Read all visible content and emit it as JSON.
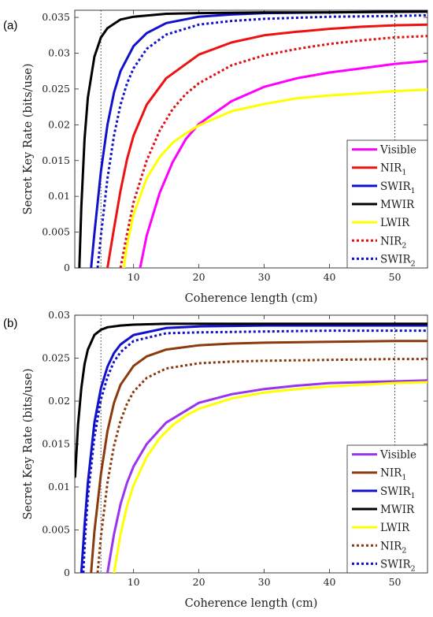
{
  "chart_data": [
    {
      "type": "line",
      "panel_label": "(a)",
      "xlabel": "Coherence length (cm)",
      "ylabel": "Secret Key Rate (bits/use)",
      "xlim": [
        1,
        55
      ],
      "ylim": [
        0,
        0.036
      ],
      "xticks": [
        10,
        20,
        30,
        40,
        50
      ],
      "xtick_labels": [
        "10",
        "20",
        "30",
        "40",
        "50"
      ],
      "yticks": [
        0,
        0.005,
        0.01,
        0.015,
        0.02,
        0.025,
        0.03,
        0.035
      ],
      "ytick_labels": [
        "0",
        "0.005",
        "0.01",
        "0.015",
        "0.02",
        "0.025",
        "0.03",
        "0.035"
      ],
      "reference_lines_x": [
        5,
        50
      ],
      "legend_position": "lower-right",
      "series": [
        {
          "name": "Visible",
          "sub": "",
          "color": "#ff00ff",
          "style": "solid",
          "x": [
            11,
            12,
            14,
            16,
            18,
            20,
            25,
            30,
            35,
            40,
            45,
            50,
            55
          ],
          "y": [
            0,
            0.0045,
            0.0105,
            0.0148,
            0.018,
            0.0201,
            0.0233,
            0.0253,
            0.0265,
            0.0273,
            0.0279,
            0.0285,
            0.0289
          ]
        },
        {
          "name": "NIR",
          "sub": "1",
          "color": "#ee1111",
          "style": "solid",
          "x": [
            6,
            7,
            8,
            9,
            10,
            12,
            15,
            20,
            25,
            30,
            35,
            40,
            45,
            50,
            55
          ],
          "y": [
            0,
            0.0055,
            0.0108,
            0.0152,
            0.0185,
            0.0228,
            0.0265,
            0.0298,
            0.0315,
            0.0325,
            0.033,
            0.0334,
            0.0337,
            0.0339,
            0.034
          ]
        },
        {
          "name": "SWIR",
          "sub": "1",
          "color": "#1111cc",
          "style": "solid",
          "x": [
            3.5,
            4,
            5,
            6,
            7,
            8,
            10,
            12,
            15,
            20,
            25,
            30,
            40,
            50,
            55
          ],
          "y": [
            0,
            0.0048,
            0.0135,
            0.02,
            0.0245,
            0.0275,
            0.031,
            0.0328,
            0.0342,
            0.0351,
            0.0354,
            0.0356,
            0.0357,
            0.0358,
            0.0358
          ]
        },
        {
          "name": "MWIR",
          "sub": "",
          "color": "#000000",
          "style": "solid",
          "x": [
            1.7,
            2,
            2.5,
            3,
            4,
            5,
            6,
            8,
            10,
            15,
            20,
            30,
            40,
            55
          ],
          "y": [
            0,
            0.0085,
            0.018,
            0.0238,
            0.0295,
            0.0322,
            0.0335,
            0.0347,
            0.0351,
            0.0355,
            0.0356,
            0.0357,
            0.0357,
            0.0358
          ]
        },
        {
          "name": "LWIR",
          "sub": "",
          "color": "#ffff00",
          "style": "solid",
          "x": [
            8.5,
            9,
            10,
            12,
            14,
            16,
            18,
            20,
            25,
            30,
            35,
            40,
            45,
            50,
            55
          ],
          "y": [
            0,
            0.0032,
            0.0075,
            0.0125,
            0.0155,
            0.0175,
            0.0188,
            0.0199,
            0.0219,
            0.0229,
            0.0237,
            0.0241,
            0.0244,
            0.0247,
            0.0249
          ]
        },
        {
          "name": "NIR",
          "sub": "2",
          "color": "#dd1111",
          "style": "dotted",
          "x": [
            8,
            9,
            10,
            12,
            14,
            16,
            18,
            20,
            25,
            30,
            35,
            40,
            45,
            50,
            55
          ],
          "y": [
            0,
            0.0048,
            0.0092,
            0.015,
            0.0192,
            0.0222,
            0.0243,
            0.0258,
            0.0283,
            0.0297,
            0.0306,
            0.0313,
            0.0318,
            0.0322,
            0.0324
          ]
        },
        {
          "name": "SWIR",
          "sub": "2",
          "color": "#1111cc",
          "style": "dotted",
          "x": [
            4.5,
            5,
            6,
            7,
            8,
            9,
            10,
            12,
            15,
            20,
            25,
            30,
            40,
            50,
            55
          ],
          "y": [
            0,
            0.0045,
            0.0125,
            0.0185,
            0.0228,
            0.0258,
            0.0279,
            0.0306,
            0.0326,
            0.034,
            0.0345,
            0.0348,
            0.0351,
            0.0352,
            0.0353
          ]
        }
      ]
    },
    {
      "type": "line",
      "panel_label": "(b)",
      "xlabel": "Coherence length (cm)",
      "ylabel": "Secret Key Rate (bits/use)",
      "xlim": [
        1,
        55
      ],
      "ylim": [
        0,
        0.03
      ],
      "xticks": [
        10,
        20,
        30,
        40,
        50
      ],
      "xtick_labels": [
        "10",
        "20",
        "30",
        "40",
        "50"
      ],
      "yticks": [
        0,
        0.005,
        0.01,
        0.015,
        0.02,
        0.025,
        0.03
      ],
      "ytick_labels": [
        "0",
        "0.005",
        "0.01",
        "0.015",
        "0.02",
        "0.025",
        "0.03"
      ],
      "reference_lines_x": [
        5,
        50
      ],
      "legend_position": "lower-right",
      "series": [
        {
          "name": "Visible",
          "sub": "",
          "color": "#9933ee",
          "style": "solid",
          "x": [
            6,
            7,
            8,
            9,
            10,
            12,
            15,
            20,
            25,
            30,
            35,
            40,
            45,
            50,
            55
          ],
          "y": [
            0,
            0.0045,
            0.008,
            0.0105,
            0.0124,
            0.015,
            0.0175,
            0.0198,
            0.0208,
            0.0214,
            0.0218,
            0.0221,
            0.0222,
            0.0223,
            0.0224
          ]
        },
        {
          "name": "NIR",
          "sub": "1",
          "color": "#8b3a0e",
          "style": "solid",
          "x": [
            3.5,
            4,
            5,
            6,
            7,
            8,
            10,
            12,
            15,
            20,
            25,
            30,
            40,
            50,
            55
          ],
          "y": [
            0,
            0.0048,
            0.0115,
            0.0165,
            0.0198,
            0.0219,
            0.0241,
            0.0252,
            0.026,
            0.0265,
            0.0267,
            0.0268,
            0.0269,
            0.027,
            0.027
          ]
        },
        {
          "name": "SWIR",
          "sub": "1",
          "color": "#1111cc",
          "style": "solid",
          "x": [
            2,
            2.5,
            3,
            4,
            5,
            6,
            7,
            8,
            10,
            15,
            20,
            30,
            40,
            55
          ],
          "y": [
            0,
            0.0055,
            0.0105,
            0.0175,
            0.0215,
            0.024,
            0.0256,
            0.0266,
            0.0277,
            0.0285,
            0.0287,
            0.0288,
            0.0288,
            0.0288
          ]
        },
        {
          "name": "MWIR",
          "sub": "",
          "color": "#000000",
          "style": "solid",
          "x": [
            1.05,
            1.5,
            2,
            2.5,
            3,
            4,
            5,
            6,
            8,
            10,
            15,
            20,
            30,
            55
          ],
          "y": [
            0.0112,
            0.0172,
            0.0215,
            0.0243,
            0.026,
            0.0277,
            0.0283,
            0.0286,
            0.0288,
            0.0289,
            0.029,
            0.029,
            0.029,
            0.029
          ]
        },
        {
          "name": "LWIR",
          "sub": "",
          "color": "#ffff00",
          "style": "solid",
          "x": [
            7,
            8,
            9,
            10,
            12,
            14,
            16,
            18,
            20,
            25,
            30,
            35,
            40,
            45,
            50,
            55
          ],
          "y": [
            0,
            0.0045,
            0.0078,
            0.0102,
            0.0135,
            0.0157,
            0.0172,
            0.0183,
            0.0191,
            0.0203,
            0.021,
            0.0214,
            0.0217,
            0.0219,
            0.0221,
            0.0222
          ]
        },
        {
          "name": "NIR",
          "sub": "2",
          "color": "#8b3a0e",
          "style": "dotted",
          "x": [
            4.5,
            5,
            6,
            7,
            8,
            9,
            10,
            12,
            15,
            20,
            25,
            30,
            40,
            50,
            55
          ],
          "y": [
            0,
            0.0042,
            0.0105,
            0.0148,
            0.0177,
            0.0197,
            0.0211,
            0.0227,
            0.0238,
            0.0244,
            0.0246,
            0.0247,
            0.0248,
            0.0249,
            0.0249
          ]
        },
        {
          "name": "SWIR",
          "sub": "2",
          "color": "#1111cc",
          "style": "dotted",
          "x": [
            2.3,
            2.6,
            3,
            4,
            5,
            6,
            7,
            8,
            10,
            15,
            20,
            30,
            40,
            55
          ],
          "y": [
            0,
            0.0045,
            0.0088,
            0.0158,
            0.0202,
            0.0228,
            0.0246,
            0.0257,
            0.027,
            0.0279,
            0.028,
            0.0281,
            0.0282,
            0.0282
          ]
        }
      ]
    }
  ]
}
